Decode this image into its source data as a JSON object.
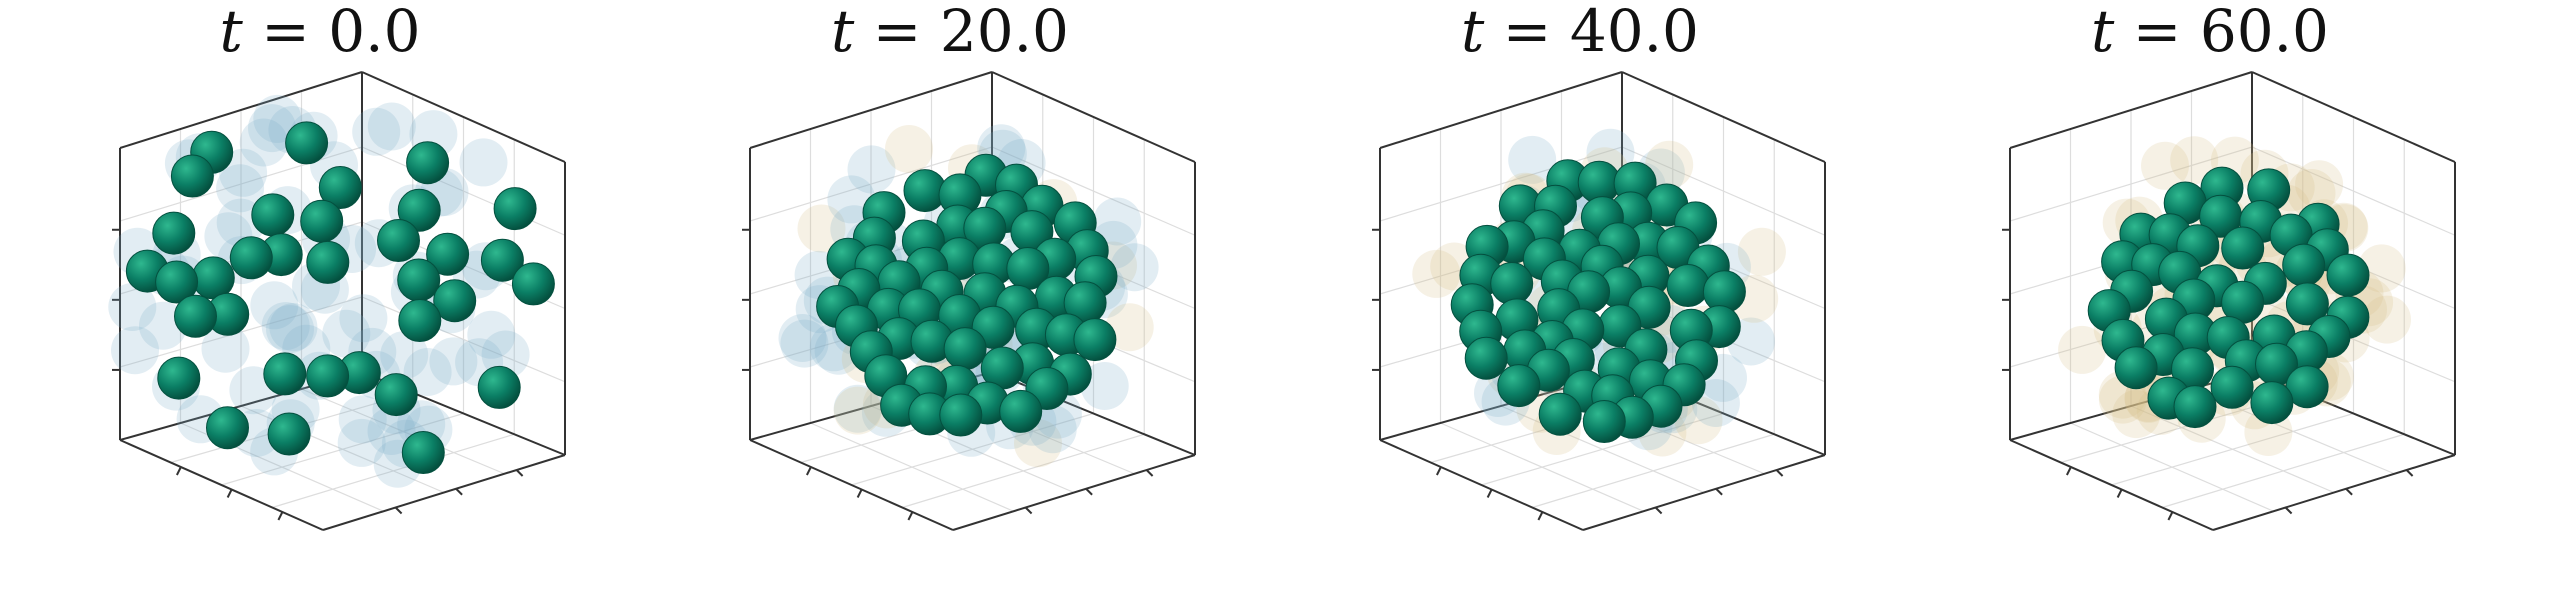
{
  "panels": [
    {
      "title_var": "t",
      "title_value": " = 0.0"
    },
    {
      "title_var": "t",
      "title_value": " = 20.0"
    },
    {
      "title_var": "t",
      "title_value": " = 40.0"
    },
    {
      "title_var": "t",
      "title_value": " = 60.0"
    }
  ],
  "colors": {
    "particle": "#0b7f65",
    "particle_highlight": "#2fb88f",
    "particle_shadow": "#04503f",
    "ghost_blue": "#7aaec9",
    "ghost_tan": "#d8c08a",
    "axis": "#333333",
    "grid": "#dddddd"
  }
}
